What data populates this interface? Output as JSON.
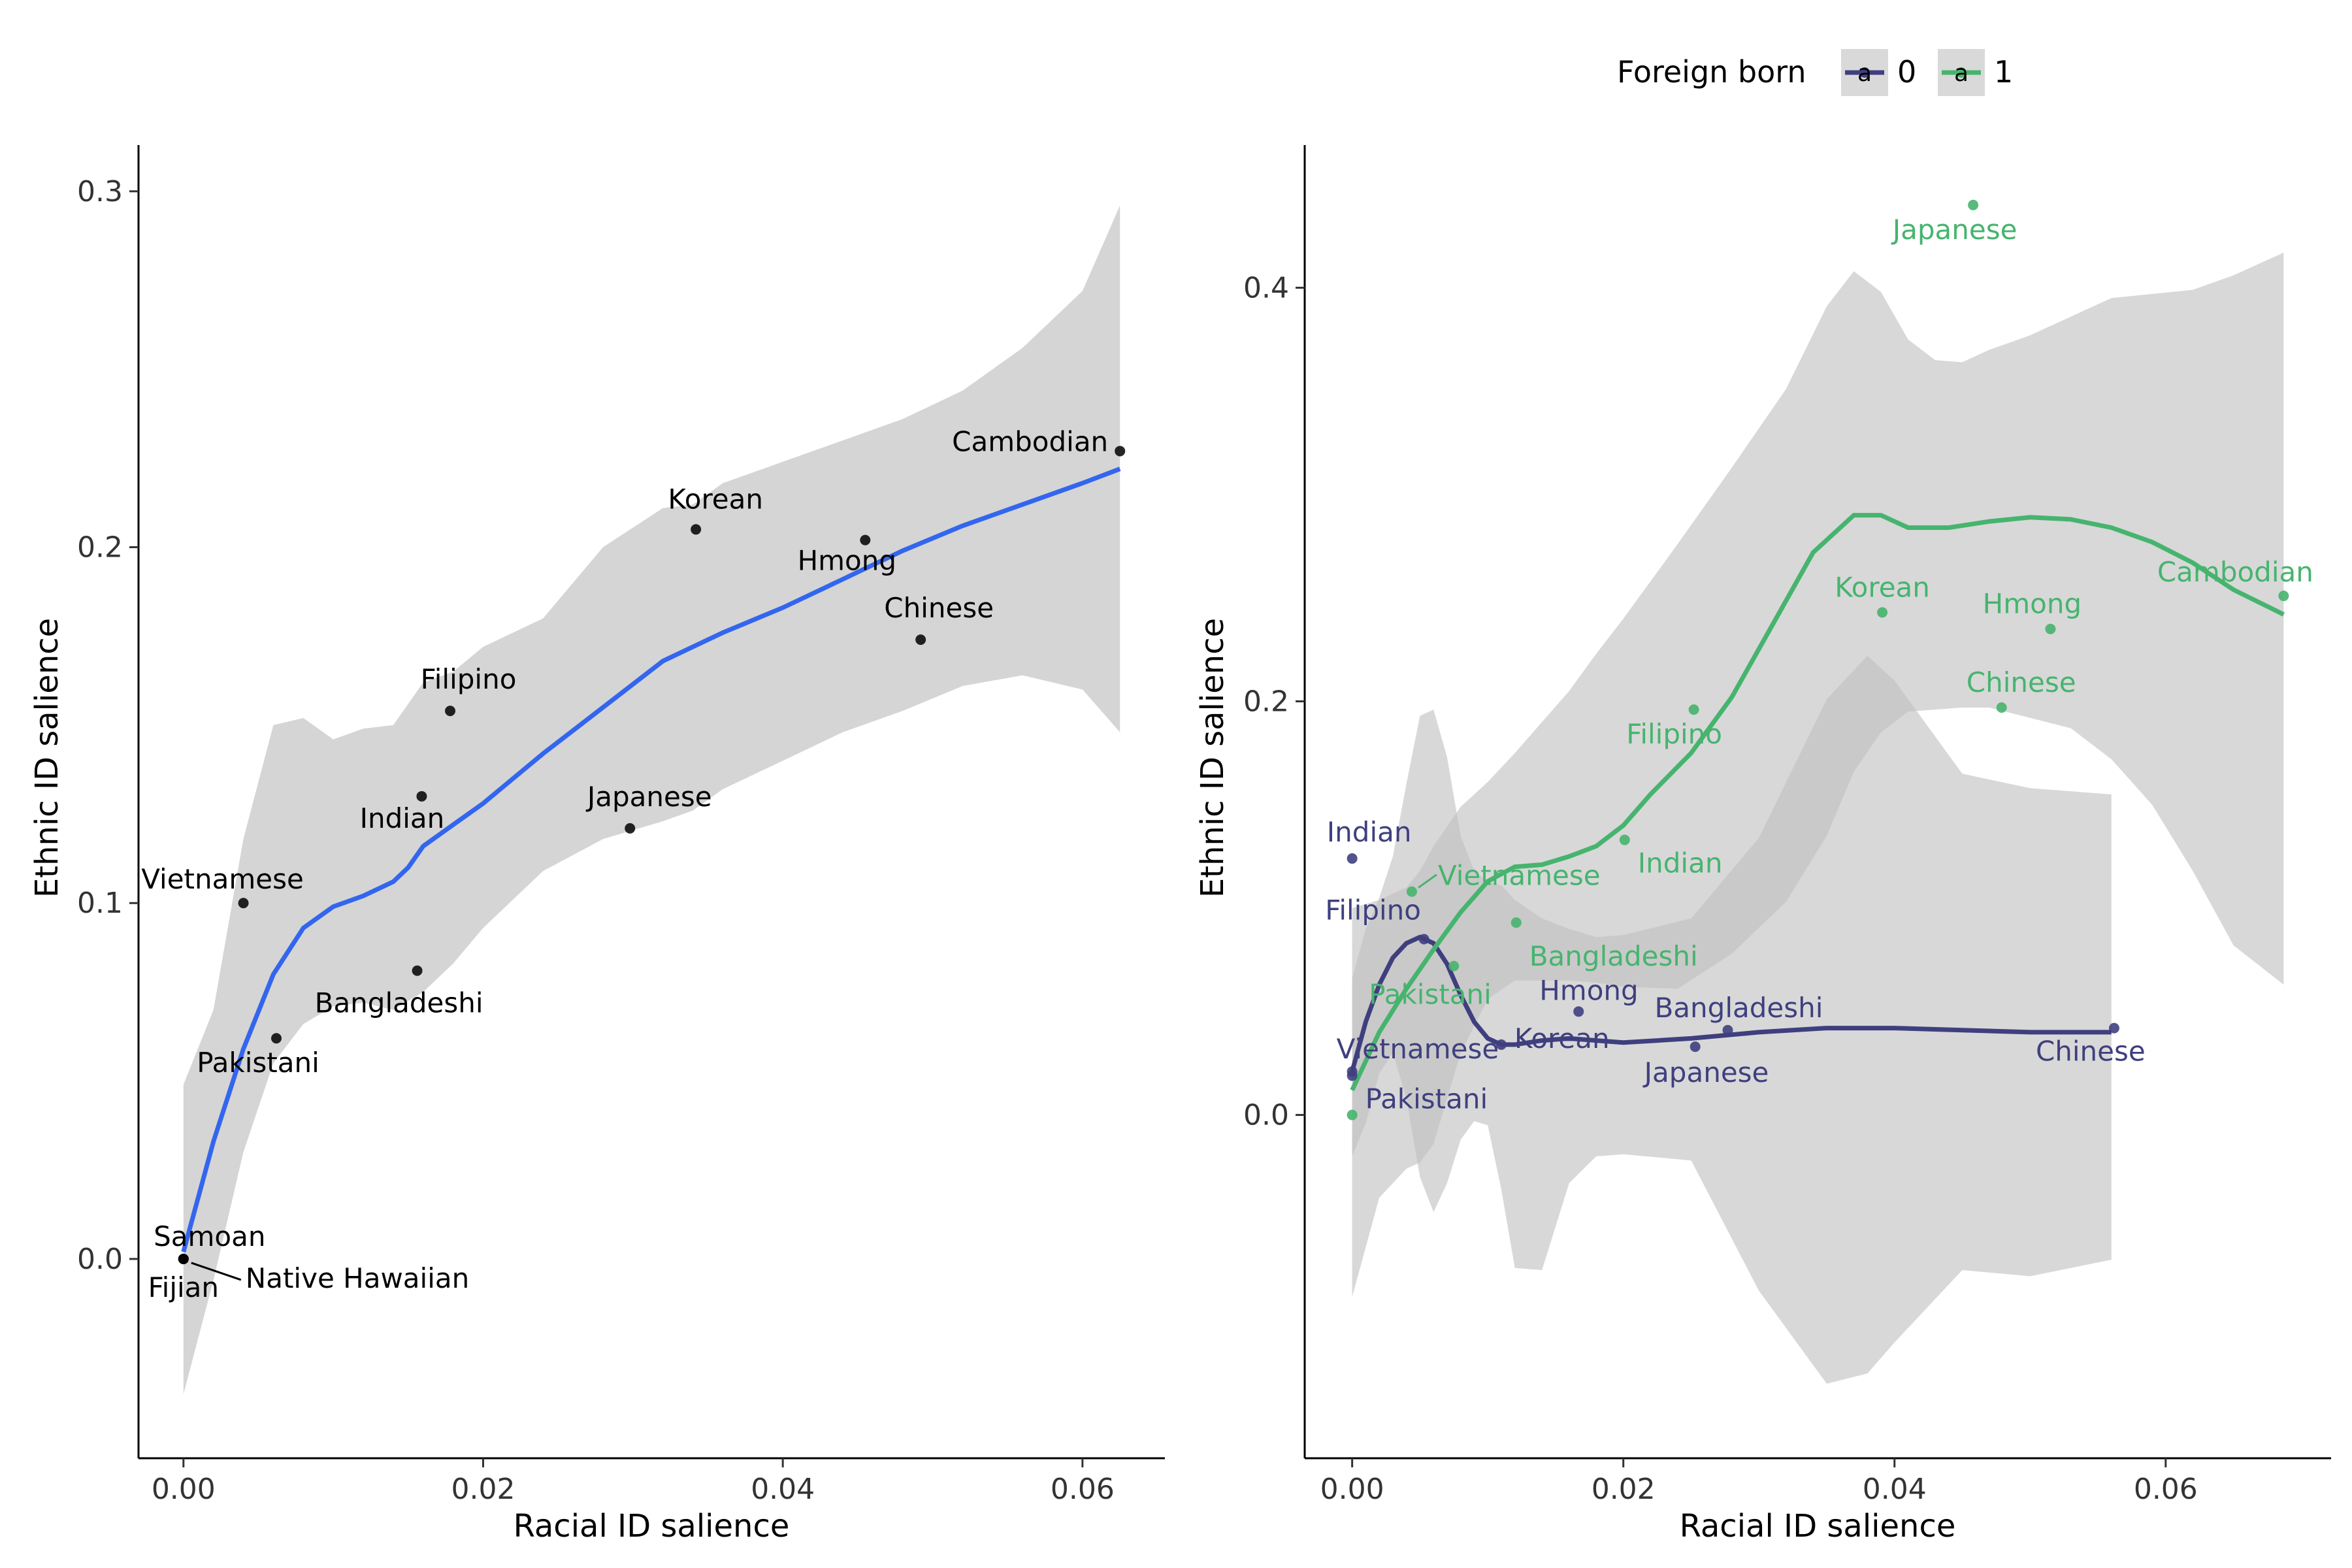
{
  "legend": {
    "title": "Foreign born",
    "entries": [
      {
        "label": "0",
        "color": "#3F3F7F"
      },
      {
        "label": "1",
        "color": "#46B46E"
      }
    ],
    "key_glyph": "a",
    "placement": "top-right"
  },
  "chart_data": [
    {
      "type": "scatter",
      "panel": "left",
      "xlabel": "Racial ID salience",
      "ylabel": "Ethnic ID salience",
      "xlim": [
        -0.003,
        0.0655
      ],
      "ylim": [
        -0.056,
        0.313
      ],
      "xticks": [
        0.0,
        0.02,
        0.04,
        0.06
      ],
      "xtick_labels": [
        "0.00",
        "0.02",
        "0.04",
        "0.06"
      ],
      "yticks": [
        0.0,
        0.1,
        0.2,
        0.3
      ],
      "ytick_labels": [
        "0.0",
        "0.1",
        "0.2",
        "0.3"
      ],
      "point_color": "#000000",
      "smooth_color": "#3366EE",
      "band_color": "#D3D3D3",
      "points": [
        {
          "label": "Cambodian",
          "x": 0.0625,
          "y": 0.227
        },
        {
          "label": "Korean",
          "x": 0.0342,
          "y": 0.205
        },
        {
          "label": "Hmong",
          "x": 0.0455,
          "y": 0.202
        },
        {
          "label": "Chinese",
          "x": 0.0492,
          "y": 0.174
        },
        {
          "label": "Filipino",
          "x": 0.0178,
          "y": 0.154
        },
        {
          "label": "Indian",
          "x": 0.0159,
          "y": 0.13
        },
        {
          "label": "Japanese",
          "x": 0.0298,
          "y": 0.121
        },
        {
          "label": "Vietnamese",
          "x": 0.004,
          "y": 0.1
        },
        {
          "label": "Bangladeshi",
          "x": 0.0156,
          "y": 0.081
        },
        {
          "label": "Pakistani",
          "x": 0.0062,
          "y": 0.062
        },
        {
          "label": "Samoan",
          "x": 0.0,
          "y": 0.0
        },
        {
          "label": "Fijian",
          "x": 0.0,
          "y": 0.0
        },
        {
          "label": "Native Hawaiian",
          "x": 0.0,
          "y": 0.0
        }
      ],
      "smooth": {
        "x": [
          0,
          0.002,
          0.004,
          0.006,
          0.008,
          0.01,
          0.012,
          0.014,
          0.015,
          0.016,
          0.018,
          0.02,
          0.024,
          0.028,
          0.032,
          0.034,
          0.036,
          0.04,
          0.044,
          0.048,
          0.052,
          0.056,
          0.06,
          0.0625
        ],
        "y": [
          0.002,
          0.033,
          0.059,
          0.08,
          0.093,
          0.099,
          0.102,
          0.106,
          0.11,
          0.116,
          0.122,
          0.128,
          0.142,
          0.155,
          0.168,
          0.172,
          0.176,
          0.183,
          0.191,
          0.199,
          0.206,
          0.212,
          0.218,
          0.222
        ]
      },
      "band": {
        "x": [
          0,
          0.002,
          0.004,
          0.006,
          0.008,
          0.01,
          0.012,
          0.014,
          0.016,
          0.018,
          0.02,
          0.024,
          0.028,
          0.032,
          0.034,
          0.036,
          0.04,
          0.044,
          0.048,
          0.052,
          0.056,
          0.06,
          0.0625
        ],
        "upper": [
          0.049,
          0.07,
          0.118,
          0.15,
          0.152,
          0.146,
          0.149,
          0.15,
          0.162,
          0.165,
          0.172,
          0.18,
          0.2,
          0.211,
          0.212,
          0.218,
          0.224,
          0.23,
          0.236,
          0.244,
          0.256,
          0.272,
          0.296
        ],
        "lower": [
          -0.038,
          -0.006,
          0.03,
          0.055,
          0.066,
          0.071,
          0.072,
          0.07,
          0.075,
          0.083,
          0.093,
          0.109,
          0.118,
          0.123,
          0.126,
          0.132,
          0.14,
          0.148,
          0.154,
          0.161,
          0.164,
          0.16,
          0.148
        ]
      }
    },
    {
      "type": "scatter",
      "panel": "right",
      "xlabel": "Racial ID salience",
      "ylabel": "Ethnic ID salience",
      "xlim": [
        -0.0035,
        0.0722
      ],
      "ylim": [
        -0.166,
        0.469
      ],
      "xticks": [
        0.0,
        0.02,
        0.04,
        0.06
      ],
      "xtick_labels": [
        "0.00",
        "0.02",
        "0.04",
        "0.06"
      ],
      "yticks": [
        0.0,
        0.2,
        0.4
      ],
      "ytick_labels": [
        "0.0",
        "0.2",
        "0.4"
      ],
      "band_color": "#C0C0C0",
      "series": [
        {
          "name": "0",
          "color": "#3F3F7F",
          "points": [
            {
              "label": "Indian",
              "x": 0.0,
              "y": 0.124
            },
            {
              "label": "Filipino",
              "x": 0.0053,
              "y": 0.085
            },
            {
              "label": "Vietnamese",
              "x": 0.0,
              "y": 0.021
            },
            {
              "label": "Pakistani",
              "x": 0.0,
              "y": 0.019
            },
            {
              "label": "Korean",
              "x": 0.011,
              "y": 0.034
            },
            {
              "label": "Hmong",
              "x": 0.0167,
              "y": 0.05
            },
            {
              "label": "Bangladeshi",
              "x": 0.0277,
              "y": 0.041
            },
            {
              "label": "Japanese",
              "x": 0.0253,
              "y": 0.033
            },
            {
              "label": "Chinese",
              "x": 0.0562,
              "y": 0.042
            }
          ],
          "smooth": {
            "x": [
              0,
              0.001,
              0.002,
              0.003,
              0.004,
              0.005,
              0.006,
              0.007,
              0.008,
              0.009,
              0.01,
              0.011,
              0.012,
              0.014,
              0.016,
              0.018,
              0.02,
              0.025,
              0.03,
              0.035,
              0.04,
              0.045,
              0.05,
              0.056
            ],
            "y": [
              0.021,
              0.045,
              0.063,
              0.076,
              0.083,
              0.086,
              0.083,
              0.073,
              0.058,
              0.045,
              0.037,
              0.034,
              0.034,
              0.036,
              0.037,
              0.036,
              0.035,
              0.037,
              0.04,
              0.042,
              0.042,
              0.041,
              0.04,
              0.04
            ]
          },
          "band": {
            "x": [
              0,
              0.001,
              0.002,
              0.003,
              0.004,
              0.005,
              0.006,
              0.007,
              0.008,
              0.009,
              0.01,
              0.011,
              0.012,
              0.014,
              0.016,
              0.018,
              0.02,
              0.025,
              0.03,
              0.035,
              0.038,
              0.04,
              0.045,
              0.05,
              0.056
            ],
            "upper": [
              0.066,
              0.09,
              0.105,
              0.125,
              0.16,
              0.193,
              0.196,
              0.173,
              0.135,
              0.118,
              0.113,
              0.111,
              0.104,
              0.095,
              0.09,
              0.086,
              0.087,
              0.095,
              0.134,
              0.201,
              0.222,
              0.21,
              0.165,
              0.158,
              0.155
            ],
            "lower": [
              -0.02,
              -0.004,
              0.02,
              0.03,
              0.008,
              -0.03,
              -0.047,
              -0.033,
              -0.012,
              -0.003,
              -0.005,
              -0.036,
              -0.074,
              -0.075,
              -0.033,
              -0.02,
              -0.019,
              -0.022,
              -0.085,
              -0.13,
              -0.125,
              -0.11,
              -0.075,
              -0.078,
              -0.07
            ]
          }
        },
        {
          "name": "1",
          "color": "#46B46E",
          "points": [
            {
              "label": "Japanese",
              "x": 0.0458,
              "y": 0.44
            },
            {
              "label": "Cambodian",
              "x": 0.0687,
              "y": 0.251
            },
            {
              "label": "Korean",
              "x": 0.0391,
              "y": 0.243
            },
            {
              "label": "Hmong",
              "x": 0.0515,
              "y": 0.235
            },
            {
              "label": "Chinese",
              "x": 0.0479,
              "y": 0.197
            },
            {
              "label": "Filipino",
              "x": 0.0252,
              "y": 0.196
            },
            {
              "label": "Indian",
              "x": 0.0201,
              "y": 0.133
            },
            {
              "label": "Vietnamese",
              "x": 0.0044,
              "y": 0.108
            },
            {
              "label": "Bangladeshi",
              "x": 0.0121,
              "y": 0.093
            },
            {
              "label": "Pakistani",
              "x": 0.0075,
              "y": 0.072
            },
            {
              "label": "",
              "x": 0.0,
              "y": 0.0
            }
          ],
          "smooth": {
            "x": [
              0,
              0.002,
              0.004,
              0.006,
              0.008,
              0.01,
              0.012,
              0.014,
              0.016,
              0.018,
              0.02,
              0.022,
              0.025,
              0.028,
              0.031,
              0.034,
              0.037,
              0.039,
              0.041,
              0.044,
              0.047,
              0.05,
              0.053,
              0.056,
              0.059,
              0.062,
              0.065,
              0.0687
            ],
            "y": [
              0.012,
              0.04,
              0.061,
              0.08,
              0.098,
              0.113,
              0.12,
              0.121,
              0.125,
              0.13,
              0.14,
              0.155,
              0.175,
              0.202,
              0.237,
              0.272,
              0.29,
              0.29,
              0.284,
              0.284,
              0.287,
              0.289,
              0.288,
              0.284,
              0.277,
              0.267,
              0.254,
              0.242
            ]
          },
          "band": {
            "x": [
              0,
              0.002,
              0.004,
              0.005,
              0.006,
              0.008,
              0.01,
              0.012,
              0.014,
              0.016,
              0.018,
              0.02,
              0.024,
              0.028,
              0.032,
              0.035,
              0.037,
              0.039,
              0.041,
              0.043,
              0.045,
              0.047,
              0.05,
              0.053,
              0.056,
              0.059,
              0.062,
              0.065,
              0.0687
            ],
            "upper": [
              0.1,
              0.104,
              0.11,
              0.118,
              0.13,
              0.149,
              0.161,
              0.175,
              0.19,
              0.205,
              0.223,
              0.24,
              0.276,
              0.313,
              0.351,
              0.391,
              0.408,
              0.398,
              0.375,
              0.365,
              0.364,
              0.37,
              0.377,
              0.386,
              0.395,
              0.397,
              0.399,
              0.406,
              0.417
            ],
            "lower": [
              -0.088,
              -0.04,
              -0.026,
              -0.023,
              -0.014,
              0.03,
              0.056,
              0.065,
              0.065,
              0.065,
              0.064,
              0.062,
              0.061,
              0.078,
              0.103,
              0.135,
              0.166,
              0.185,
              0.195,
              0.196,
              0.197,
              0.197,
              0.192,
              0.187,
              0.172,
              0.15,
              0.118,
              0.082,
              0.063
            ]
          }
        }
      ]
    }
  ]
}
